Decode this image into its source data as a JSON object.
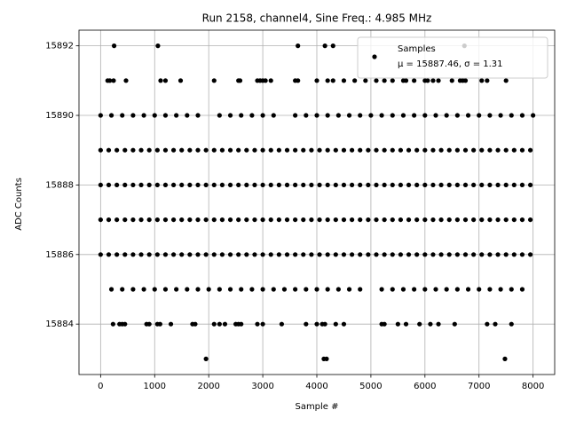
{
  "chart_data": {
    "type": "scatter",
    "title": "Run 2158, channel4, Sine Freq.: 4.985 MHz",
    "xlabel": "Sample #",
    "ylabel": "ADC Counts",
    "xlim": [
      -400,
      8400
    ],
    "ylim": [
      15882.55,
      15892.45
    ],
    "xticks": [
      0,
      1000,
      2000,
      3000,
      4000,
      5000,
      6000,
      7000,
      8000
    ],
    "yticks": [
      15884,
      15886,
      15888,
      15890,
      15892
    ],
    "grid": true,
    "legend": "upper right",
    "legend_stats": "μ = 15887.46, σ = 1.31",
    "series": [
      {
        "name": "Samples",
        "color": "#000000",
        "x": [
          250,
          1060,
          3650,
          4150,
          4300,
          6730,
          130,
          170,
          240,
          470,
          1110,
          1200,
          1480,
          2100,
          2550,
          2580,
          2900,
          2950,
          3000,
          3050,
          3150,
          3600,
          3650,
          4000,
          4200,
          4300,
          4500,
          4700,
          4900,
          5100,
          5250,
          5400,
          5600,
          5650,
          5800,
          6000,
          6050,
          6150,
          6250,
          6500,
          6650,
          6700,
          6750,
          7050,
          7150,
          7500,
          0,
          200,
          400,
          600,
          800,
          1000,
          1200,
          1400,
          1600,
          1800,
          2200,
          2400,
          2600,
          2800,
          3000,
          3200,
          3600,
          3800,
          4000,
          4200,
          4400,
          4600,
          4800,
          5000,
          5200,
          5400,
          5600,
          5800,
          6000,
          6200,
          6400,
          6600,
          6800,
          7000,
          7200,
          7400,
          7600,
          7800,
          8000,
          0,
          150,
          300,
          450,
          600,
          750,
          900,
          1050,
          1200,
          1350,
          1500,
          1650,
          1800,
          1950,
          2100,
          2250,
          2400,
          2550,
          2700,
          2850,
          3000,
          3150,
          3300,
          3450,
          3600,
          3750,
          3900,
          4050,
          4200,
          4350,
          4500,
          4650,
          4800,
          4950,
          5100,
          5250,
          5400,
          5550,
          5700,
          5850,
          6000,
          6150,
          6300,
          6450,
          6600,
          6750,
          6900,
          7050,
          7200,
          7350,
          7500,
          7650,
          7800,
          7950,
          0,
          150,
          300,
          450,
          600,
          750,
          900,
          1050,
          1200,
          1350,
          1500,
          1650,
          1800,
          1950,
          2100,
          2250,
          2400,
          2550,
          2700,
          2850,
          3000,
          3150,
          3300,
          3450,
          3600,
          3750,
          3900,
          4050,
          4200,
          4350,
          4500,
          4650,
          4800,
          4950,
          5100,
          5250,
          5400,
          5550,
          5700,
          5850,
          6000,
          6150,
          6300,
          6450,
          6600,
          6750,
          6900,
          7050,
          7200,
          7350,
          7500,
          7650,
          7800,
          7950,
          0,
          150,
          300,
          450,
          600,
          750,
          900,
          1050,
          1200,
          1350,
          1500,
          1650,
          1800,
          1950,
          2100,
          2250,
          2400,
          2550,
          2700,
          2850,
          3000,
          3150,
          3300,
          3450,
          3600,
          3750,
          3900,
          4050,
          4200,
          4350,
          4500,
          4650,
          4800,
          4950,
          5100,
          5250,
          5400,
          5550,
          5700,
          5850,
          6000,
          6150,
          6300,
          6450,
          6600,
          6750,
          6900,
          7050,
          7200,
          7350,
          7500,
          7650,
          7800,
          7950,
          0,
          150,
          300,
          450,
          600,
          750,
          900,
          1050,
          1200,
          1350,
          1500,
          1650,
          1800,
          1950,
          2100,
          2250,
          2400,
          2550,
          2700,
          2850,
          3000,
          3150,
          3300,
          3450,
          3600,
          3750,
          3900,
          4050,
          4200,
          4350,
          4500,
          4650,
          4800,
          4950,
          5100,
          5250,
          5400,
          5550,
          5700,
          5850,
          6000,
          6150,
          6300,
          6450,
          6600,
          6750,
          6900,
          7050,
          7200,
          7350,
          7500,
          7650,
          7800,
          7950,
          200,
          400,
          600,
          800,
          1000,
          1200,
          1400,
          1600,
          1800,
          2000,
          2200,
          2400,
          2600,
          2800,
          3000,
          3200,
          3400,
          3600,
          3800,
          4000,
          4200,
          4400,
          4600,
          4800,
          5200,
          5400,
          5600,
          5800,
          6000,
          6200,
          6400,
          6600,
          6800,
          7000,
          7200,
          7400,
          7600,
          7800,
          230,
          350,
          400,
          450,
          850,
          900,
          1050,
          1100,
          1300,
          1700,
          1750,
          2100,
          2200,
          2300,
          2500,
          2550,
          2600,
          2900,
          3000,
          3350,
          3800,
          4000,
          4100,
          4150,
          4350,
          4500,
          5200,
          5250,
          5500,
          5650,
          5900,
          6100,
          6250,
          6550,
          7150,
          7300,
          7600,
          1950,
          4130,
          4180,
          7480
        ],
        "values": [
          15892,
          15892,
          15892,
          15892,
          15892,
          15892,
          15891,
          15891,
          15891,
          15891,
          15891,
          15891,
          15891,
          15891,
          15891,
          15891,
          15891,
          15891,
          15891,
          15891,
          15891,
          15891,
          15891,
          15891,
          15891,
          15891,
          15891,
          15891,
          15891,
          15891,
          15891,
          15891,
          15891,
          15891,
          15891,
          15891,
          15891,
          15891,
          15891,
          15891,
          15891,
          15891,
          15891,
          15891,
          15891,
          15891,
          15890,
          15890,
          15890,
          15890,
          15890,
          15890,
          15890,
          15890,
          15890,
          15890,
          15890,
          15890,
          15890,
          15890,
          15890,
          15890,
          15890,
          15890,
          15890,
          15890,
          15890,
          15890,
          15890,
          15890,
          15890,
          15890,
          15890,
          15890,
          15890,
          15890,
          15890,
          15890,
          15890,
          15890,
          15890,
          15890,
          15890,
          15890,
          15890,
          15889,
          15889,
          15889,
          15889,
          15889,
          15889,
          15889,
          15889,
          15889,
          15889,
          15889,
          15889,
          15889,
          15889,
          15889,
          15889,
          15889,
          15889,
          15889,
          15889,
          15889,
          15889,
          15889,
          15889,
          15889,
          15889,
          15889,
          15889,
          15889,
          15889,
          15889,
          15889,
          15889,
          15889,
          15889,
          15889,
          15889,
          15889,
          15889,
          15889,
          15889,
          15889,
          15889,
          15889,
          15889,
          15889,
          15889,
          15889,
          15889,
          15889,
          15889,
          15889,
          15889,
          15889,
          15888,
          15888,
          15888,
          15888,
          15888,
          15888,
          15888,
          15888,
          15888,
          15888,
          15888,
          15888,
          15888,
          15888,
          15888,
          15888,
          15888,
          15888,
          15888,
          15888,
          15888,
          15888,
          15888,
          15888,
          15888,
          15888,
          15888,
          15888,
          15888,
          15888,
          15888,
          15888,
          15888,
          15888,
          15888,
          15888,
          15888,
          15888,
          15888,
          15888,
          15888,
          15888,
          15888,
          15888,
          15888,
          15888,
          15888,
          15888,
          15888,
          15888,
          15888,
          15888,
          15888,
          15888,
          15887,
          15887,
          15887,
          15887,
          15887,
          15887,
          15887,
          15887,
          15887,
          15887,
          15887,
          15887,
          15887,
          15887,
          15887,
          15887,
          15887,
          15887,
          15887,
          15887,
          15887,
          15887,
          15887,
          15887,
          15887,
          15887,
          15887,
          15887,
          15887,
          15887,
          15887,
          15887,
          15887,
          15887,
          15887,
          15887,
          15887,
          15887,
          15887,
          15887,
          15887,
          15887,
          15887,
          15887,
          15887,
          15887,
          15887,
          15887,
          15887,
          15887,
          15887,
          15887,
          15887,
          15887,
          15886,
          15886,
          15886,
          15886,
          15886,
          15886,
          15886,
          15886,
          15886,
          15886,
          15886,
          15886,
          15886,
          15886,
          15886,
          15886,
          15886,
          15886,
          15886,
          15886,
          15886,
          15886,
          15886,
          15886,
          15886,
          15886,
          15886,
          15886,
          15886,
          15886,
          15886,
          15886,
          15886,
          15886,
          15886,
          15886,
          15886,
          15886,
          15886,
          15886,
          15886,
          15886,
          15886,
          15886,
          15886,
          15886,
          15886,
          15886,
          15886,
          15886,
          15886,
          15886,
          15886,
          15886,
          15885,
          15885,
          15885,
          15885,
          15885,
          15885,
          15885,
          15885,
          15885,
          15885,
          15885,
          15885,
          15885,
          15885,
          15885,
          15885,
          15885,
          15885,
          15885,
          15885,
          15885,
          15885,
          15885,
          15885,
          15885,
          15885,
          15885,
          15885,
          15885,
          15885,
          15885,
          15885,
          15885,
          15885,
          15885,
          15885,
          15885,
          15885,
          15884,
          15884,
          15884,
          15884,
          15884,
          15884,
          15884,
          15884,
          15884,
          15884,
          15884,
          15884,
          15884,
          15884,
          15884,
          15884,
          15884,
          15884,
          15884,
          15884,
          15884,
          15884,
          15884,
          15884,
          15884,
          15884,
          15884,
          15884,
          15884,
          15884,
          15884,
          15884,
          15884,
          15884,
          15884,
          15884,
          15884,
          15883,
          15883,
          15883,
          15883
        ]
      }
    ]
  }
}
